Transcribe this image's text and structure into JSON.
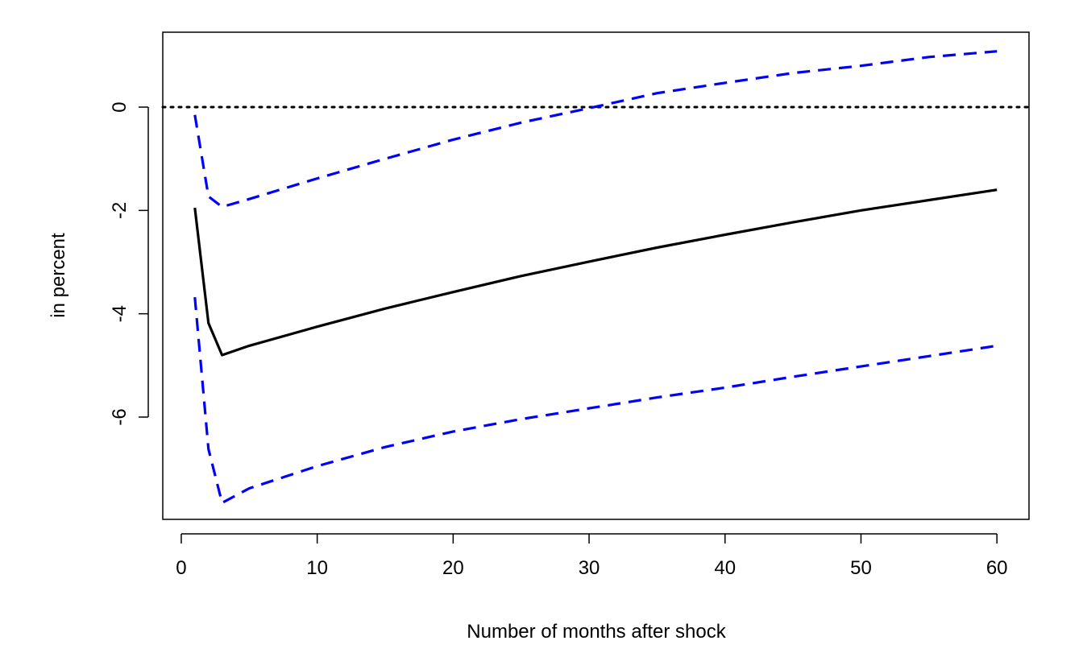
{
  "chart_data": {
    "type": "line",
    "title": "",
    "xlabel": "Number of months after shock",
    "ylabel": "in percent",
    "xlim": [
      -1.36,
      62.36
    ],
    "ylim": [
      -7.98,
      1.45
    ],
    "grid": false,
    "legend": "none",
    "x_ticks": [
      0,
      10,
      20,
      30,
      40,
      50,
      60
    ],
    "x_tick_labels": [
      "0",
      "10",
      "20",
      "30",
      "40",
      "50",
      "60"
    ],
    "y_ticks": [
      -6,
      -4,
      -2,
      0
    ],
    "y_tick_labels": [
      "-6",
      "-4",
      "-2",
      "0"
    ],
    "reference_line": {
      "y": 0,
      "style": "dotted",
      "color": "#000000"
    },
    "series": [
      {
        "role": "point estimate",
        "style": "solid",
        "color": "#000000",
        "x": [
          1,
          2,
          3,
          5,
          10,
          15,
          20,
          25,
          30,
          35,
          40,
          45,
          50,
          55,
          60
        ],
        "values": [
          -1.95,
          -4.18,
          -4.8,
          -4.62,
          -4.25,
          -3.9,
          -3.58,
          -3.27,
          -2.99,
          -2.72,
          -2.47,
          -2.23,
          -2.0,
          -1.8,
          -1.6
        ]
      },
      {
        "role": "upper band",
        "style": "dashed",
        "color": "#0000ff",
        "x": [
          1,
          2,
          3,
          5,
          10,
          15,
          20,
          25,
          30,
          35,
          40,
          45,
          50,
          55,
          60
        ],
        "values": [
          -0.15,
          -1.73,
          -1.93,
          -1.78,
          -1.38,
          -1.0,
          -0.63,
          -0.3,
          -0.02,
          0.27,
          0.47,
          0.66,
          0.8,
          0.97,
          1.08
        ]
      },
      {
        "role": "lower band",
        "style": "dashed",
        "color": "#0000ff",
        "x": [
          1,
          2,
          3,
          5,
          10,
          15,
          20,
          25,
          30,
          35,
          40,
          45,
          50,
          55,
          60
        ],
        "values": [
          -3.68,
          -6.62,
          -7.66,
          -7.38,
          -6.95,
          -6.58,
          -6.28,
          -6.04,
          -5.83,
          -5.62,
          -5.43,
          -5.22,
          -5.02,
          -4.82,
          -4.62
        ]
      }
    ]
  }
}
